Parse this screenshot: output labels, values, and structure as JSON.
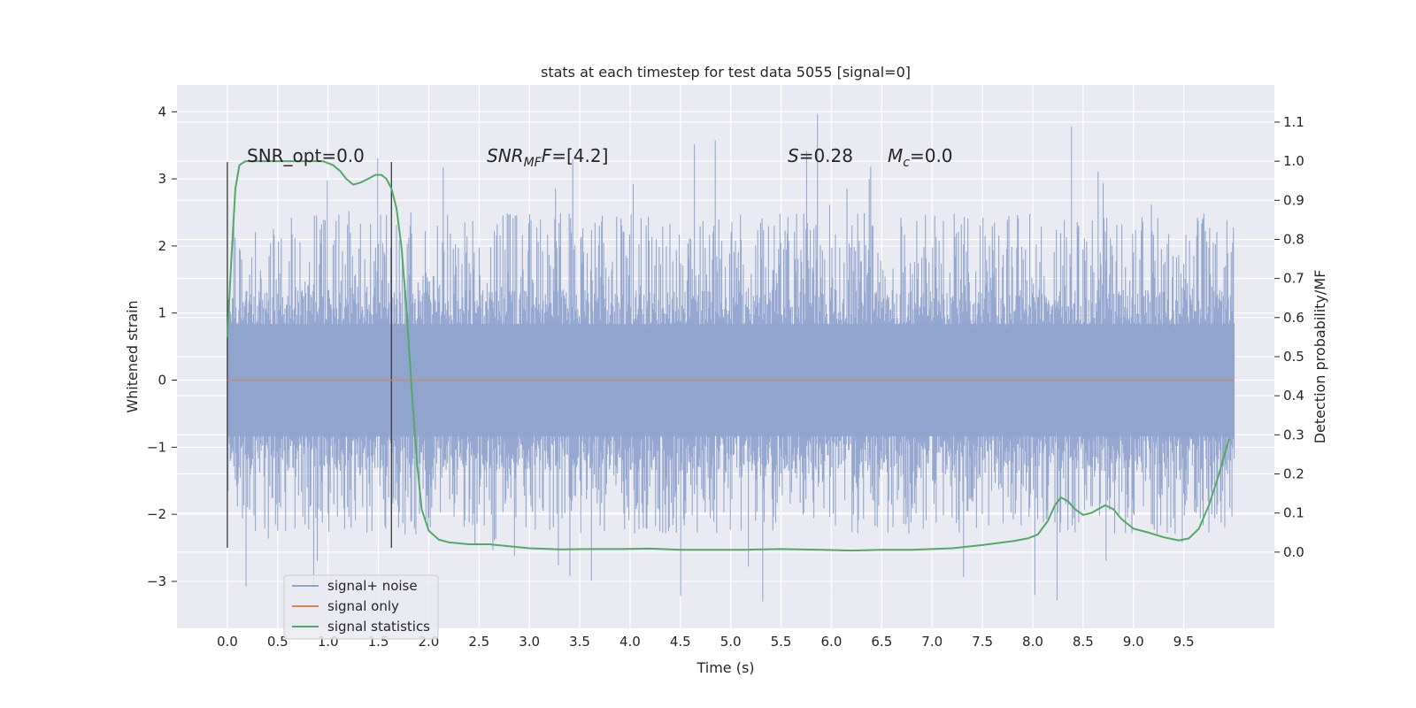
{
  "chart_data": {
    "type": "line",
    "title": "stats at each timestep for test data 5055 [signal=0]",
    "xlabel": "Time (s)",
    "ylabel_left": "Whitened strain",
    "ylabel_right": "Detection probability/MF",
    "xlim": [
      -0.5,
      10.4
    ],
    "ylim_left": [
      -3.7,
      4.4
    ],
    "ylim_right": [
      -0.195,
      1.195
    ],
    "xticks": [
      0.0,
      0.5,
      1.0,
      1.5,
      2.0,
      2.5,
      3.0,
      3.5,
      4.0,
      4.5,
      5.0,
      5.5,
      6.0,
      6.5,
      7.0,
      7.5,
      8.0,
      8.5,
      9.0,
      9.5
    ],
    "xtick_labels": [
      "0.0",
      "0.5",
      "1.0",
      "1.5",
      "2.0",
      "2.5",
      "3.0",
      "3.5",
      "4.0",
      "4.5",
      "5.0",
      "5.5",
      "6.0",
      "6.5",
      "7.0",
      "7.5",
      "8.0",
      "8.5",
      "9.0",
      "9.5"
    ],
    "yticks_left": [
      -3,
      -2,
      -1,
      0,
      1,
      2,
      3,
      4
    ],
    "ytick_labels_left": [
      "−3",
      "−2",
      "−1",
      "0",
      "1",
      "2",
      "3",
      "4"
    ],
    "yticks_right": [
      0.0,
      0.1,
      0.2,
      0.3,
      0.4,
      0.5,
      0.6,
      0.7,
      0.8,
      0.9,
      1.0,
      1.1
    ],
    "ytick_labels_right": [
      "0.0",
      "0.1",
      "0.2",
      "0.3",
      "0.4",
      "0.5",
      "0.6",
      "0.7",
      "0.8",
      "0.9",
      "1.0",
      "1.1"
    ],
    "grid": true,
    "legend_position": "lower-left",
    "annotations": {
      "snr_opt": "SNR_opt=0.0",
      "snr_mf_base": "SNR",
      "snr_mf_sub": "MF",
      "snr_mf_value": "=[4.2]",
      "s_var": "S",
      "s_value": "=0.28",
      "mc_base": "M",
      "mc_sub": "c",
      "mc_value": "=0.0"
    },
    "window_lines": {
      "x": [
        0.0,
        1.63
      ],
      "y_range": [
        -2.5,
        3.25
      ]
    },
    "series": [
      {
        "name": "signal+ noise",
        "kind": "noise",
        "color": "#8fa4cd",
        "t_range": [
          0.0,
          10.0
        ],
        "n_samples": 1400,
        "typical_max": 2.5,
        "typical_min": -2.3,
        "global_max": 4.05,
        "global_min": -3.35,
        "dense_band": 1.35
      },
      {
        "name": "signal only",
        "kind": "line",
        "color": "#dd8452",
        "x": [
          0.0,
          10.0
        ],
        "y": [
          0.0,
          0.0
        ]
      },
      {
        "name": "signal statistics",
        "kind": "line",
        "color": "#55a868",
        "axis": "right",
        "x": [
          0.0,
          0.04,
          0.08,
          0.12,
          0.18,
          0.25,
          0.4,
          0.6,
          0.8,
          0.95,
          1.05,
          1.12,
          1.18,
          1.25,
          1.32,
          1.4,
          1.47,
          1.53,
          1.58,
          1.63,
          1.68,
          1.73,
          1.78,
          1.83,
          1.88,
          1.93,
          2.0,
          2.1,
          2.2,
          2.4,
          2.6,
          2.8,
          3.0,
          3.3,
          3.6,
          3.9,
          4.2,
          4.5,
          4.8,
          5.1,
          5.5,
          5.9,
          6.2,
          6.5,
          6.8,
          7.2,
          7.5,
          7.8,
          7.95,
          8.05,
          8.15,
          8.22,
          8.28,
          8.35,
          8.42,
          8.5,
          8.58,
          8.65,
          8.72,
          8.8,
          8.88,
          9.0,
          9.15,
          9.3,
          9.45,
          9.55,
          9.65,
          9.75,
          9.85,
          9.95
        ],
        "y": [
          0.55,
          0.75,
          0.93,
          0.99,
          1.0,
          1.0,
          1.0,
          1.0,
          1.0,
          1.0,
          0.99,
          0.975,
          0.955,
          0.94,
          0.945,
          0.955,
          0.965,
          0.965,
          0.955,
          0.93,
          0.88,
          0.78,
          0.62,
          0.42,
          0.24,
          0.11,
          0.055,
          0.032,
          0.025,
          0.02,
          0.02,
          0.015,
          0.01,
          0.007,
          0.008,
          0.008,
          0.009,
          0.006,
          0.006,
          0.006,
          0.008,
          0.006,
          0.004,
          0.006,
          0.006,
          0.01,
          0.018,
          0.028,
          0.035,
          0.045,
          0.08,
          0.12,
          0.14,
          0.13,
          0.11,
          0.095,
          0.1,
          0.11,
          0.12,
          0.11,
          0.085,
          0.06,
          0.05,
          0.038,
          0.03,
          0.035,
          0.06,
          0.12,
          0.2,
          0.29
        ]
      }
    ]
  }
}
